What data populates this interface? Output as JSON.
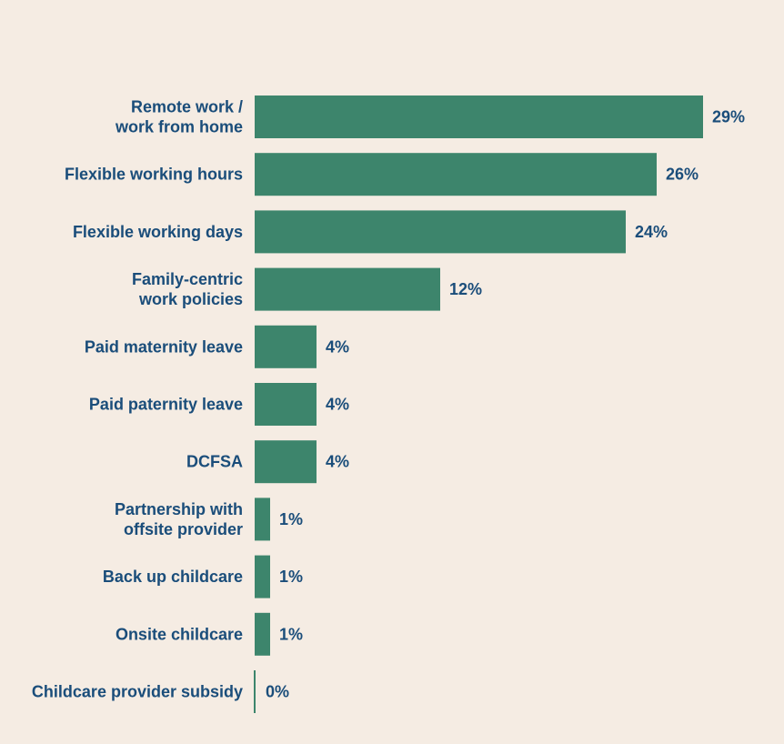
{
  "colors": {
    "background": "#f5ece3",
    "bar": "#3d856c",
    "text": "#1a4d7a"
  },
  "chart_data": {
    "type": "bar",
    "orientation": "horizontal",
    "categories": [
      [
        "Remote work /",
        "work from home"
      ],
      [
        "Flexible working hours"
      ],
      [
        "Flexible working days"
      ],
      [
        "Family-centric",
        "work policies"
      ],
      [
        "Paid maternity leave"
      ],
      [
        "Paid paternity leave"
      ],
      [
        "DCFSA"
      ],
      [
        "Partnership with",
        "offsite provider"
      ],
      [
        "Back up childcare"
      ],
      [
        "Onsite childcare"
      ],
      [
        "Childcare provider subsidy"
      ]
    ],
    "values": [
      29,
      26,
      24,
      12,
      4,
      4,
      4,
      1,
      1,
      1,
      0
    ],
    "value_labels": [
      "29%",
      "26%",
      "24%",
      "12%",
      "4%",
      "4%",
      "4%",
      "1%",
      "1%",
      "1%",
      "0%"
    ],
    "unit": "%",
    "title": "",
    "xlabel": "",
    "ylabel": "",
    "grid": false,
    "legend": false
  }
}
